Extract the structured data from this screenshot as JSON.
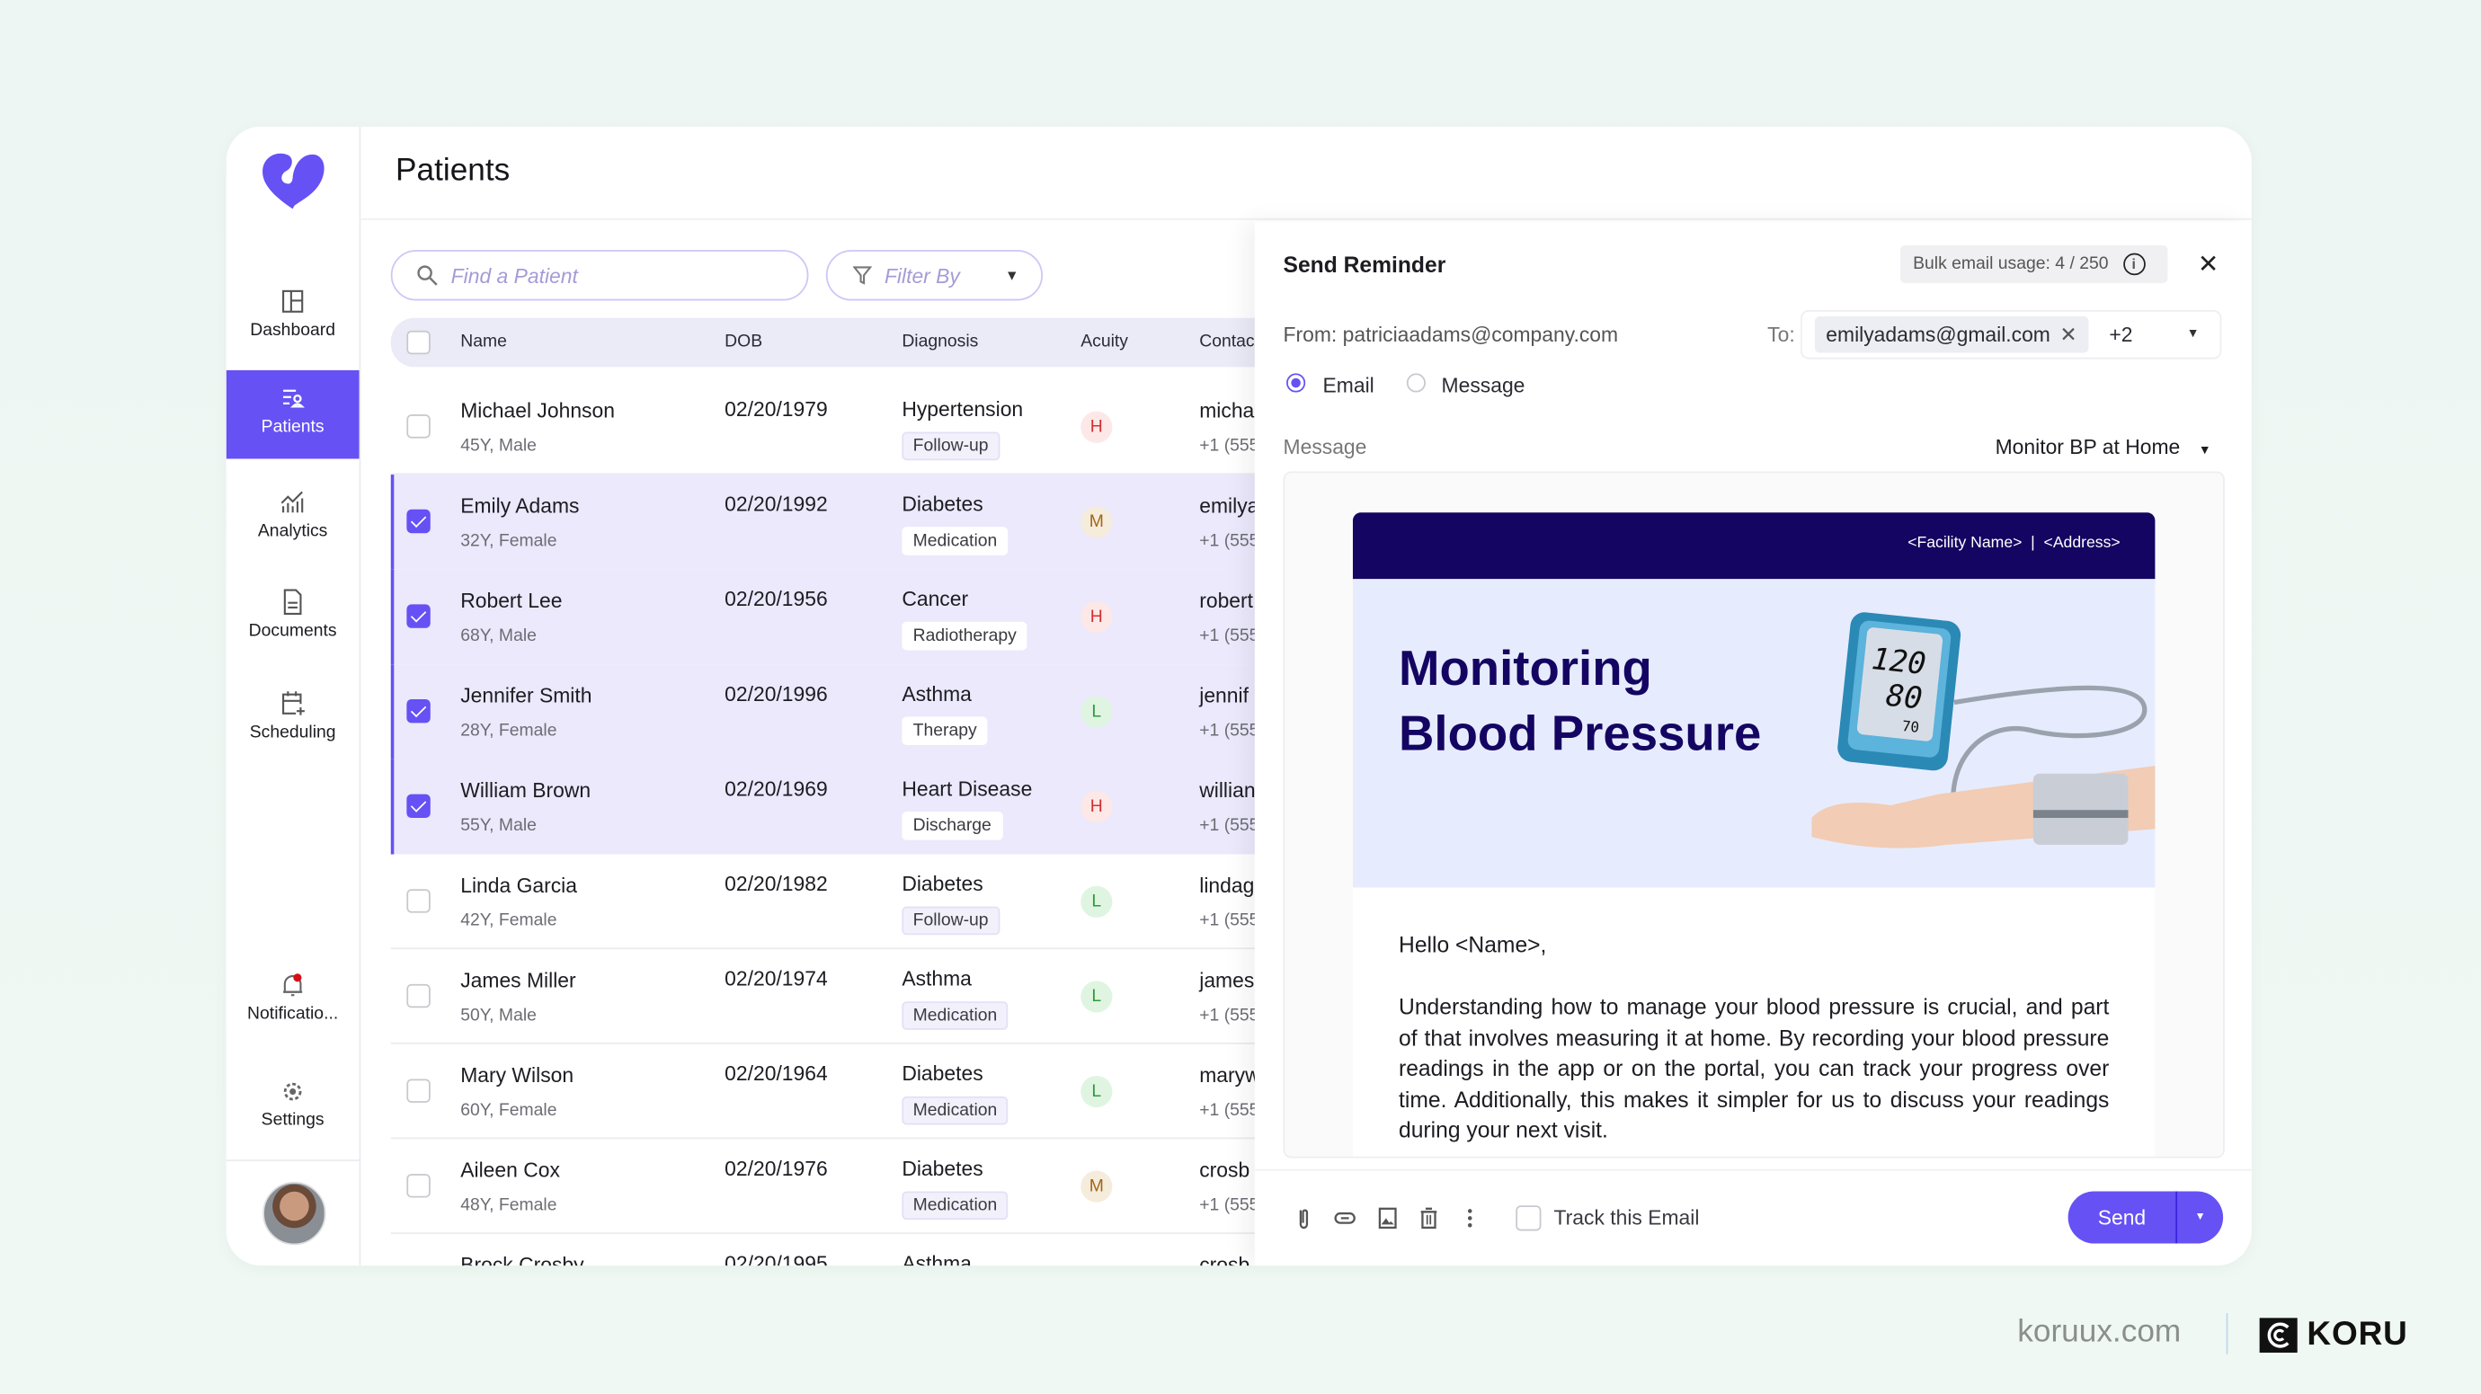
{
  "sidebar": {
    "items": [
      {
        "label": "Dashboard",
        "icon": "dashboard-icon"
      },
      {
        "label": "Patients",
        "icon": "patients-icon",
        "active": true
      },
      {
        "label": "Analytics",
        "icon": "analytics-icon"
      },
      {
        "label": "Documents",
        "icon": "documents-icon"
      },
      {
        "label": "Scheduling",
        "icon": "scheduling-icon"
      }
    ],
    "notifications_label": "Notificatio...",
    "settings_label": "Settings"
  },
  "header": {
    "title": "Patients"
  },
  "search": {
    "placeholder": "Find a Patient"
  },
  "filter": {
    "placeholder": "Filter By"
  },
  "table": {
    "columns": [
      "Name",
      "DOB",
      "Diagnosis",
      "Acuity",
      "Contac"
    ],
    "rows": [
      {
        "name": "Michael Johnson",
        "info": "45Y, Male",
        "dob": "02/20/1979",
        "diagnosis": "Hypertension",
        "tag": "Follow-up",
        "acuity": "H",
        "contact": "micha",
        "phone": "+1 (555",
        "selected": false
      },
      {
        "name": "Emily Adams",
        "info": "32Y, Female",
        "dob": "02/20/1992",
        "diagnosis": "Diabetes",
        "tag": "Medication",
        "acuity": "M",
        "contact": "emilya",
        "phone": "+1 (555",
        "selected": true
      },
      {
        "name": "Robert Lee",
        "info": "68Y, Male",
        "dob": "02/20/1956",
        "diagnosis": "Cancer",
        "tag": "Radiotherapy",
        "acuity": "H",
        "contact": "robert",
        "phone": "+1 (555",
        "selected": true
      },
      {
        "name": "Jennifer Smith",
        "info": "28Y, Female",
        "dob": "02/20/1996",
        "diagnosis": "Asthma",
        "tag": "Therapy",
        "acuity": "L",
        "contact": "jennif",
        "phone": "+1 (555",
        "selected": true
      },
      {
        "name": "William Brown",
        "info": "55Y, Male",
        "dob": "02/20/1969",
        "diagnosis": "Heart Disease",
        "tag": "Discharge",
        "acuity": "H",
        "contact": "willian",
        "phone": "+1 (555",
        "selected": true
      },
      {
        "name": "Linda Garcia",
        "info": "42Y, Female",
        "dob": "02/20/1982",
        "diagnosis": "Diabetes",
        "tag": "Follow-up",
        "acuity": "L",
        "contact": "lindag",
        "phone": "+1 (555",
        "selected": false
      },
      {
        "name": "James Miller",
        "info": "50Y, Male",
        "dob": "02/20/1974",
        "diagnosis": "Asthma",
        "tag": "Medication",
        "acuity": "L",
        "contact": "james",
        "phone": "+1 (555",
        "selected": false
      },
      {
        "name": "Mary Wilson",
        "info": "60Y, Female",
        "dob": "02/20/1964",
        "diagnosis": "Diabetes",
        "tag": "Medication",
        "acuity": "L",
        "contact": "maryw",
        "phone": "+1 (555",
        "selected": false
      },
      {
        "name": "Aileen Cox",
        "info": "48Y, Female",
        "dob": "02/20/1976",
        "diagnosis": "Diabetes",
        "tag": "Medication",
        "acuity": "M",
        "contact": "crosb",
        "phone": "+1 (555",
        "selected": false
      },
      {
        "name": "Brock Crosby",
        "info": "",
        "dob": "02/20/1995",
        "diagnosis": "Asthma",
        "tag": "",
        "acuity": "",
        "contact": "crosb",
        "phone": "",
        "selected": false
      }
    ]
  },
  "acuity_colors": {
    "H": {
      "fg": "#d32f2f",
      "bg": "#fde8e8"
    },
    "M": {
      "fg": "#a0661a",
      "bg": "#f6ecdc"
    },
    "L": {
      "fg": "#2e9b3a",
      "bg": "#dff5e1"
    }
  },
  "panel": {
    "title": "Send Reminder",
    "usage": "Bulk email usage: 4 / 250",
    "from": "From: patriciaadams@company.com",
    "to_label": "To:",
    "to_chip": "emilyadams@gmail.com",
    "to_more": "+2",
    "radio_email": "Email",
    "radio_message": "Message",
    "channel_selected": "Email",
    "message_label": "Message",
    "template": "Monitor BP at Home",
    "email": {
      "header": "<Facility Name>  |  <Address>",
      "headline_1": "Monitoring",
      "headline_2": "Blood Pressure",
      "monitor_sys": "120",
      "monitor_dia": "80",
      "monitor_pulse": "70",
      "greeting": "Hello <Name>,",
      "body": "Understanding how to manage your blood pressure is crucial, and part of that involves measuring it at home. By recording your blood pressure readings in the app or on the portal, you can track your progress over time. Additionally, this makes it simpler for us to discuss your readings during your next visit."
    },
    "track_label": "Track this Email",
    "send_label": "Send"
  },
  "branding": {
    "site": "koruux.com",
    "logo": "KORU"
  },
  "colors": {
    "accent": "#6651f4",
    "navy": "#140562",
    "banner_bg": "#e6ecfd"
  }
}
